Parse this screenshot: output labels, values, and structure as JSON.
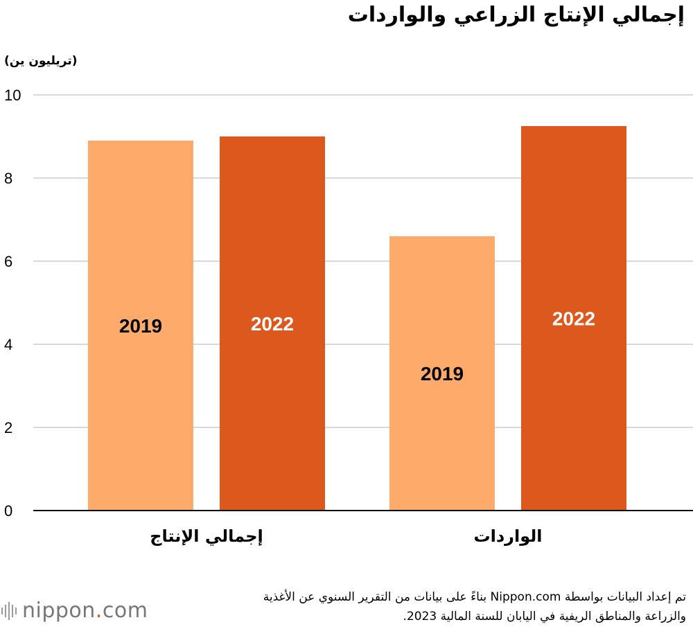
{
  "chart_data": {
    "type": "bar",
    "title": "إجمالي الإنتاج الزراعي والواردات",
    "ylabel": "(تريليون ين)",
    "xlabel": "",
    "ylim": [
      0,
      10
    ],
    "yticks": [
      0,
      2,
      4,
      6,
      8,
      10
    ],
    "categories": [
      "إجمالي الإنتاج",
      "الواردات"
    ],
    "series": [
      {
        "name": "2019",
        "color": "#fdaa6a",
        "label_color": "#000000",
        "values": [
          8.9,
          6.6
        ]
      },
      {
        "name": "2022",
        "color": "#dc581c",
        "label_color": "#ffffff",
        "values": [
          9.0,
          9.25
        ]
      }
    ],
    "grid": true,
    "legend": "inside-bars"
  },
  "source": {
    "line1": "تم إعداد البيانات بواسطة Nippon.com بناءً على بيانات من التقرير السنوي عن الأغذية",
    "line2": "والزراعة والمناطق الريفية في اليابان للسنة المالية 2023."
  },
  "logo": {
    "text_a": "nippon",
    "dot": ".",
    "text_b": "com"
  }
}
